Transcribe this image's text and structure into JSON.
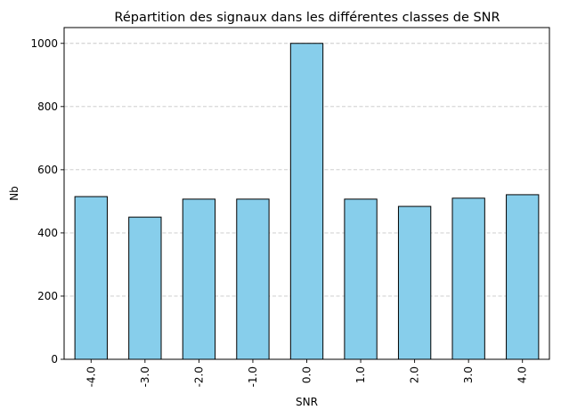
{
  "chart_data": {
    "type": "bar",
    "title": "Répartition des signaux dans les différentes classes de SNR",
    "xlabel": "SNR",
    "ylabel": "Nb",
    "categories": [
      "-4.0",
      "-3.0",
      "-2.0",
      "-1.0",
      "0.0",
      "1.0",
      "2.0",
      "3.0",
      "4.0"
    ],
    "values": [
      515,
      450,
      507,
      507,
      1000,
      507,
      484,
      510,
      521
    ],
    "ylim": [
      0,
      1050
    ],
    "yticks": [
      0,
      200,
      400,
      600,
      800,
      1000
    ],
    "grid": "y, dashed",
    "colors": {
      "bar_fill": "#87CEEB",
      "bar_edge": "#000000",
      "grid": "#c8c8c8"
    }
  }
}
